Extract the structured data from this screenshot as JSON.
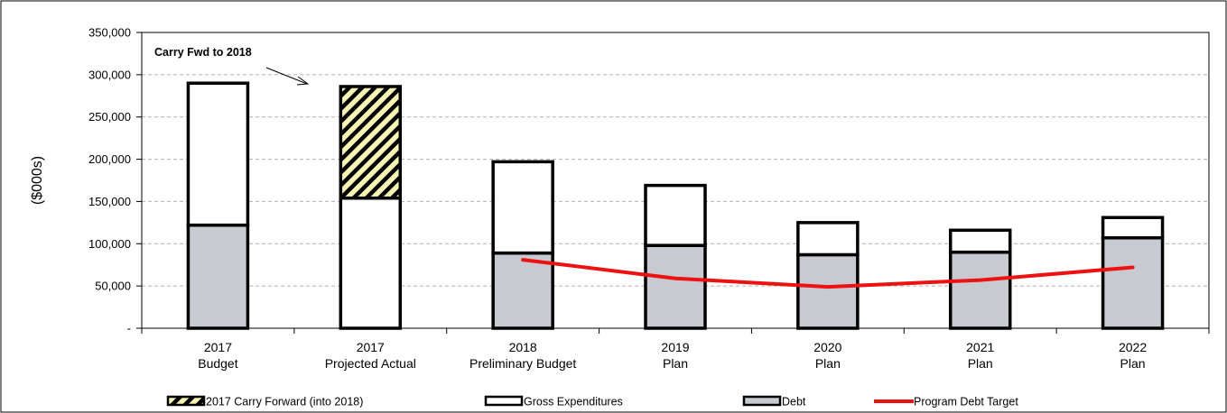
{
  "chart_data": {
    "type": "bar",
    "stacked": true,
    "title": "",
    "xlabel": "",
    "ylabel": "($000s)",
    "ylim": [
      0,
      350000
    ],
    "yticks": [
      0,
      50000,
      100000,
      150000,
      200000,
      250000,
      300000,
      350000
    ],
    "ytick_labels": [
      "-",
      "50,000",
      "100,000",
      "150,000",
      "200,000",
      "250,000",
      "300,000",
      "350,000"
    ],
    "grid": true,
    "legend_position": "bottom",
    "categories": [
      [
        "2017",
        "Budget"
      ],
      [
        "2017",
        "Projected Actual"
      ],
      [
        "2018",
        "Preliminary Budget"
      ],
      [
        "2019",
        "Plan"
      ],
      [
        "2020",
        "Plan"
      ],
      [
        "2021",
        "Plan"
      ],
      [
        "2022",
        "Plan"
      ]
    ],
    "series": [
      {
        "name": "Debt",
        "kind": "bar",
        "values": [
          122000,
          0,
          89000,
          98000,
          87000,
          90000,
          107000
        ]
      },
      {
        "name": "Gross Expenditures",
        "kind": "bar",
        "values": [
          168000,
          154000,
          108000,
          71000,
          38000,
          26000,
          24000
        ]
      },
      {
        "name": "2017 Carry Forward (into 2018)",
        "kind": "bar",
        "values": [
          0,
          132000,
          0,
          0,
          0,
          0,
          0
        ]
      },
      {
        "name": "Program Debt Target",
        "kind": "line",
        "values": [
          null,
          null,
          81000,
          59000,
          49000,
          57000,
          72000
        ]
      }
    ],
    "legend": [
      "2017 Carry Forward (into 2018)",
      "Gross Expenditures",
      "Debt",
      "Program Debt Target"
    ],
    "annotation": "Carry Fwd to 2018",
    "colors": {
      "debt": "#c8cad2",
      "gross": "#ffffff",
      "carry_fill": "#f6f3b4",
      "carry_stripe": "#000000",
      "target_line": "#ee1111",
      "grid": "#b0b0b0",
      "bar_outline": "#000000"
    }
  }
}
